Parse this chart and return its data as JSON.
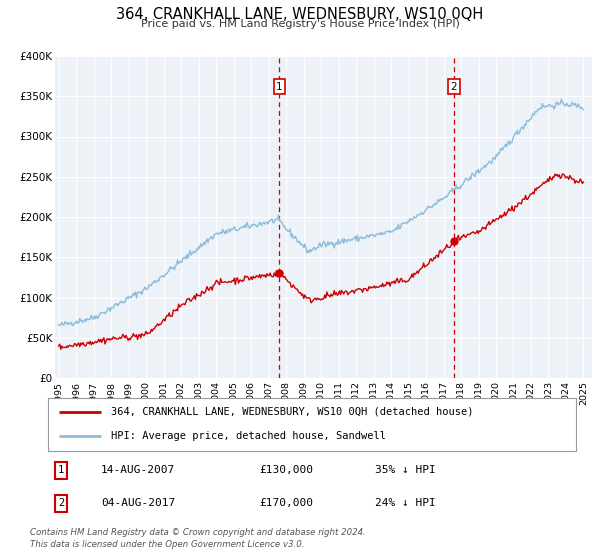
{
  "title": "364, CRANKHALL LANE, WEDNESBURY, WS10 0QH",
  "subtitle": "Price paid vs. HM Land Registry's House Price Index (HPI)",
  "hpi_color": "#8bbcda",
  "price_color": "#cc0000",
  "marker_color": "#cc0000",
  "bg_color": "#edf2f8",
  "ylim": [
    0,
    400000
  ],
  "yticks": [
    0,
    50000,
    100000,
    150000,
    200000,
    250000,
    300000,
    350000,
    400000
  ],
  "ytick_labels": [
    "£0",
    "£50K",
    "£100K",
    "£150K",
    "£200K",
    "£250K",
    "£300K",
    "£350K",
    "£400K"
  ],
  "xlim_start": 1994.8,
  "xlim_end": 2025.5,
  "sale1_year": 2007.62,
  "sale1_price": 130000,
  "sale1_label": "1",
  "sale2_year": 2017.59,
  "sale2_price": 170000,
  "sale2_label": "2",
  "legend_line1": "364, CRANKHALL LANE, WEDNESBURY, WS10 0QH (detached house)",
  "legend_line2": "HPI: Average price, detached house, Sandwell",
  "table_row1_num": "1",
  "table_row1_date": "14-AUG-2007",
  "table_row1_price": "£130,000",
  "table_row1_hpi": "35% ↓ HPI",
  "table_row2_num": "2",
  "table_row2_date": "04-AUG-2017",
  "table_row2_price": "£170,000",
  "table_row2_hpi": "24% ↓ HPI",
  "footnote1": "Contains HM Land Registry data © Crown copyright and database right 2024.",
  "footnote2": "This data is licensed under the Open Government Licence v3.0."
}
